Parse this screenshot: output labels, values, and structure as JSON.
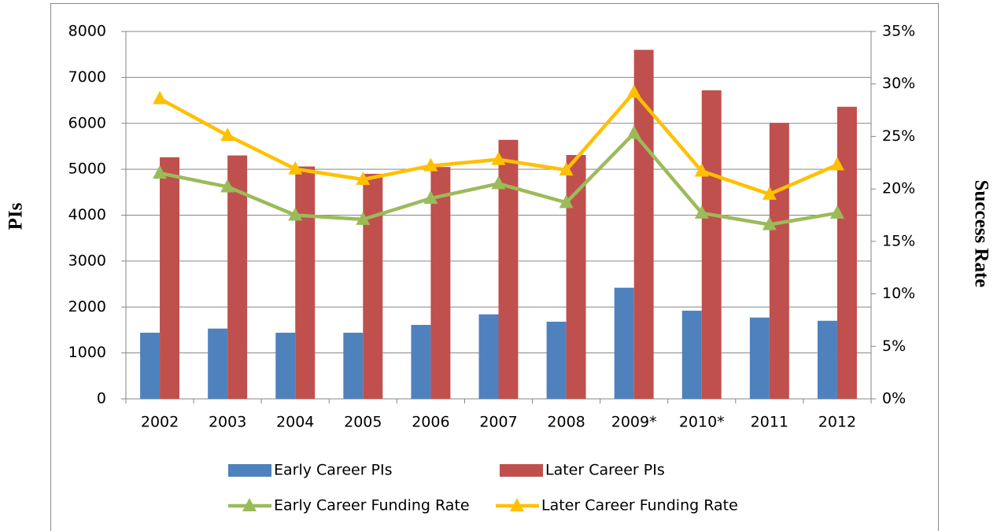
{
  "chart_data": {
    "type": "combo",
    "y_label": "PIs",
    "y2_label": "Success Rate",
    "categories": [
      "2002",
      "2003",
      "2004",
      "2005",
      "2006",
      "2007",
      "2008",
      "2009*",
      "2010*",
      "2011",
      "2012"
    ],
    "series": [
      {
        "name": "Early Career PIs",
        "type": "bar",
        "color": "#4f81bd",
        "values": [
          1440,
          1530,
          1440,
          1440,
          1610,
          1840,
          1680,
          2420,
          1920,
          1770,
          1700
        ]
      },
      {
        "name": "Later Career PIs",
        "type": "bar",
        "color": "#c0504d",
        "values": [
          5260,
          5300,
          5060,
          4900,
          5050,
          5640,
          5310,
          7600,
          6720,
          6010,
          6360
        ]
      },
      {
        "name": "Early Career Funding Rate",
        "type": "line",
        "axis": "y2",
        "color": "#9bbb59",
        "values": [
          21.5,
          20.2,
          17.5,
          17.1,
          19.1,
          20.5,
          18.7,
          25.3,
          17.7,
          16.6,
          17.7
        ]
      },
      {
        "name": "Later Career Funding Rate",
        "type": "line",
        "axis": "y2",
        "color": "#ffc000",
        "values": [
          28.6,
          25.1,
          21.9,
          20.9,
          22.2,
          22.8,
          21.8,
          29.2,
          21.7,
          19.5,
          22.3
        ]
      }
    ],
    "ylim": [
      0,
      8000
    ],
    "yticks": [
      0,
      1000,
      2000,
      3000,
      4000,
      5000,
      6000,
      7000,
      8000
    ],
    "y2lim": [
      0,
      35
    ],
    "y2ticks": [
      {
        "value": 0,
        "label": "0%"
      },
      {
        "value": 5,
        "label": "5%"
      },
      {
        "value": 10,
        "label": "10%"
      },
      {
        "value": 15,
        "label": "15%"
      },
      {
        "value": 20,
        "label": "20%"
      },
      {
        "value": 25,
        "label": "25%"
      },
      {
        "value": 30,
        "label": "30%"
      },
      {
        "value": 35,
        "label": "35%"
      }
    ],
    "grid": true
  }
}
